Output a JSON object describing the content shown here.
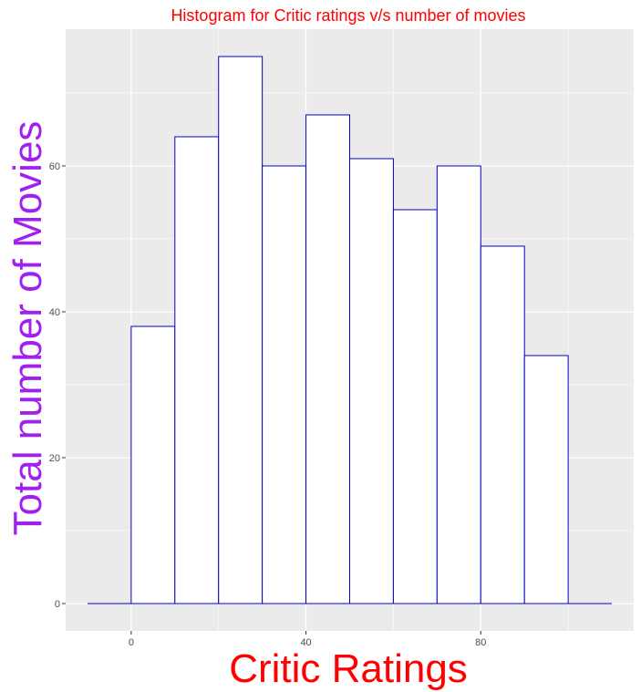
{
  "chart_data": {
    "type": "bar",
    "subtype": "histogram",
    "title": "Histogram for Critic ratings v/s number of movies",
    "xlabel": "Critic Ratings",
    "ylabel": "Total number of Movies",
    "bin_edges": [
      -10,
      0,
      10,
      20,
      30,
      40,
      50,
      60,
      70,
      80,
      90,
      100,
      110
    ],
    "values": [
      0,
      38,
      64,
      75,
      60,
      67,
      61,
      54,
      60,
      49,
      34,
      0
    ],
    "x_ticks": [
      0,
      40,
      80
    ],
    "y_ticks": [
      0,
      20,
      40,
      60
    ],
    "xlim": [
      -15,
      115
    ],
    "ylim": [
      -3.75,
      78.75
    ],
    "grid": true,
    "colors": {
      "panel_background": "#ebebeb",
      "grid": "#ffffff",
      "bar_fill": "#ffffff",
      "bar_outline": "#0000cc",
      "title": "#ff0000",
      "xlabel": "#ff0000",
      "ylabel": "#a020f0",
      "tick_label": "#4d4d4d"
    }
  }
}
